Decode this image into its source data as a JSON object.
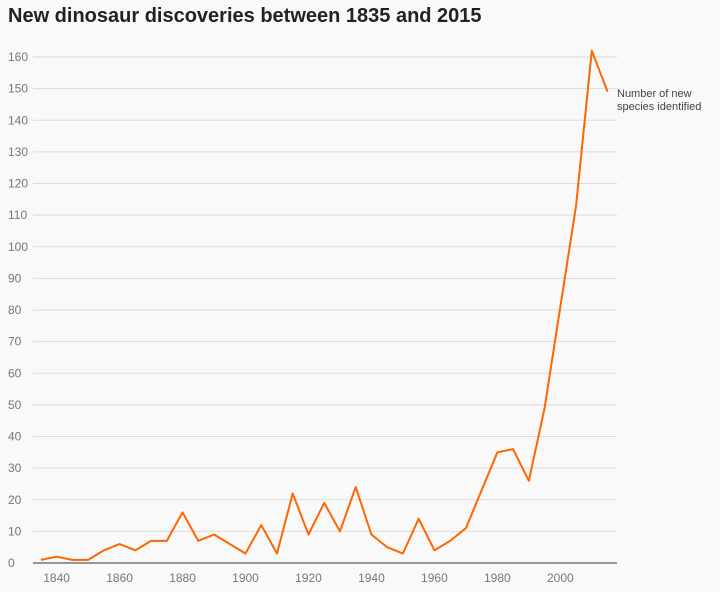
{
  "chart_data": {
    "type": "line",
    "title": "New dinosaur discoveries between 1835 and 2015",
    "xlabel": "",
    "ylabel": "",
    "xlim": [
      1832.5,
      2018
    ],
    "ylim": [
      0,
      165
    ],
    "xticks": [
      1840,
      1860,
      1880,
      1900,
      1920,
      1940,
      1960,
      1980,
      2000
    ],
    "yticks": [
      0,
      10,
      20,
      30,
      40,
      50,
      60,
      70,
      80,
      90,
      100,
      110,
      120,
      130,
      140,
      150,
      160
    ],
    "grid": true,
    "color": "#ff6600",
    "annotation": [
      "Number of new",
      "species identified"
    ],
    "x": [
      1835,
      1840,
      1845,
      1850,
      1855,
      1860,
      1865,
      1870,
      1875,
      1880,
      1885,
      1890,
      1895,
      1900,
      1905,
      1910,
      1915,
      1920,
      1925,
      1930,
      1935,
      1940,
      1945,
      1950,
      1955,
      1960,
      1965,
      1970,
      1975,
      1980,
      1985,
      1990,
      1995,
      2000,
      2005,
      2010,
      2015
    ],
    "y": [
      1,
      2,
      1,
      1,
      4,
      6,
      4,
      7,
      7,
      16,
      7,
      9,
      6,
      3,
      12,
      3,
      22,
      9,
      19,
      10,
      24,
      9,
      5,
      3,
      14,
      4,
      7,
      11,
      23,
      35,
      36,
      26,
      49,
      81,
      113,
      162,
      149
    ]
  }
}
